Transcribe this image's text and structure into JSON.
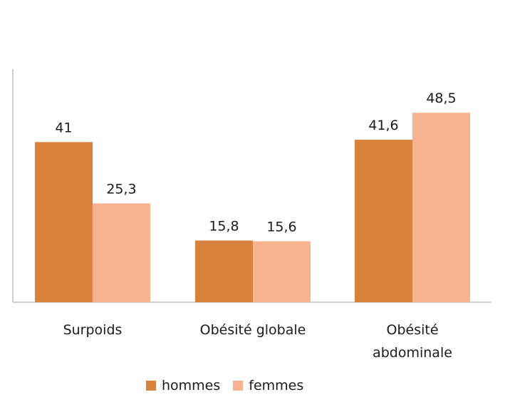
{
  "chart_data": {
    "type": "bar",
    "categories": [
      "Surpoids",
      "Obésité globale",
      "Obésité abdominale"
    ],
    "category_lines": [
      [
        "Surpoids"
      ],
      [
        "Obésité globale"
      ],
      [
        "Obésité",
        "abdominale"
      ]
    ],
    "series": [
      {
        "name": "hommes",
        "values": [
          41,
          15.8,
          41.6
        ],
        "labels": [
          "41",
          "15,8",
          "41,6"
        ],
        "color": "#d9823e"
      },
      {
        "name": "femmes",
        "values": [
          25.3,
          15.6,
          48.5
        ],
        "labels": [
          "25,3",
          "15,6",
          "48,5"
        ],
        "color": "#f7b28f"
      }
    ],
    "ylim": [
      0,
      60
    ],
    "grid": false,
    "legend_position": "bottom",
    "axis_color": "#bfbfbf"
  }
}
